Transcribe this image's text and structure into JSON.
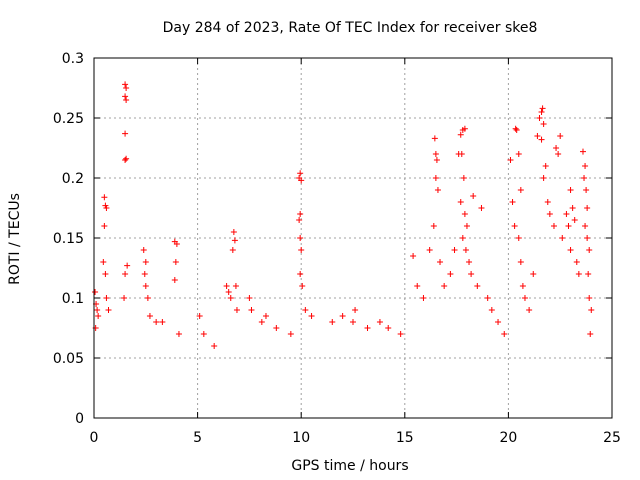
{
  "chart_data": {
    "type": "scatter",
    "title": "Day 284 of 2023, Rate Of TEC Index for receiver ske8",
    "xlabel": "GPS time / hours",
    "ylabel": "ROTI / TECUs",
    "xlim": [
      0,
      25
    ],
    "ylim": [
      0,
      0.3
    ],
    "x_ticks": [
      "0",
      "5",
      "10",
      "15",
      "20",
      "25"
    ],
    "y_ticks": [
      "0",
      "0.05",
      "0.1",
      "0.15",
      "0.2",
      "0.25",
      "0.3"
    ],
    "grid": true,
    "legend": "none",
    "marker": "plus",
    "color": "#ff0000",
    "series": [
      {
        "values": [
          [
            0.05,
            0.105
          ],
          [
            0.1,
            0.095
          ],
          [
            0.15,
            0.09
          ],
          [
            0.2,
            0.085
          ],
          [
            0.08,
            0.075
          ],
          [
            0.5,
            0.184
          ],
          [
            0.55,
            0.177
          ],
          [
            0.6,
            0.175
          ],
          [
            0.5,
            0.16
          ],
          [
            0.45,
            0.13
          ],
          [
            0.55,
            0.12
          ],
          [
            0.6,
            0.1
          ],
          [
            0.7,
            0.09
          ],
          [
            1.5,
            0.278
          ],
          [
            1.55,
            0.275
          ],
          [
            1.5,
            0.268
          ],
          [
            1.55,
            0.265
          ],
          [
            1.5,
            0.237
          ],
          [
            1.55,
            0.216
          ],
          [
            1.5,
            0.215
          ],
          [
            1.6,
            0.127
          ],
          [
            1.5,
            0.12
          ],
          [
            1.45,
            0.1
          ],
          [
            2.4,
            0.14
          ],
          [
            2.5,
            0.13
          ],
          [
            2.45,
            0.12
          ],
          [
            2.5,
            0.11
          ],
          [
            2.6,
            0.1
          ],
          [
            2.7,
            0.085
          ],
          [
            3.0,
            0.08
          ],
          [
            3.3,
            0.08
          ],
          [
            3.9,
            0.147
          ],
          [
            4.0,
            0.145
          ],
          [
            3.95,
            0.13
          ],
          [
            3.9,
            0.115
          ],
          [
            4.1,
            0.07
          ],
          [
            5.1,
            0.085
          ],
          [
            5.3,
            0.07
          ],
          [
            5.8,
            0.06
          ],
          [
            6.4,
            0.11
          ],
          [
            6.5,
            0.105
          ],
          [
            6.6,
            0.1
          ],
          [
            6.75,
            0.155
          ],
          [
            6.8,
            0.148
          ],
          [
            6.7,
            0.14
          ],
          [
            6.85,
            0.11
          ],
          [
            6.9,
            0.09
          ],
          [
            7.5,
            0.1
          ],
          [
            7.6,
            0.09
          ],
          [
            8.3,
            0.085
          ],
          [
            8.1,
            0.08
          ],
          [
            8.8,
            0.075
          ],
          [
            9.5,
            0.07
          ],
          [
            9.9,
            0.2
          ],
          [
            9.95,
            0.204
          ],
          [
            10.0,
            0.198
          ],
          [
            9.95,
            0.17
          ],
          [
            9.9,
            0.165
          ],
          [
            9.95,
            0.15
          ],
          [
            10.0,
            0.14
          ],
          [
            9.95,
            0.12
          ],
          [
            10.05,
            0.11
          ],
          [
            10.2,
            0.09
          ],
          [
            10.5,
            0.085
          ],
          [
            11.5,
            0.08
          ],
          [
            12.0,
            0.085
          ],
          [
            12.5,
            0.08
          ],
          [
            12.6,
            0.09
          ],
          [
            13.2,
            0.075
          ],
          [
            13.8,
            0.08
          ],
          [
            14.2,
            0.075
          ],
          [
            14.8,
            0.07
          ],
          [
            15.4,
            0.135
          ],
          [
            15.6,
            0.11
          ],
          [
            15.9,
            0.1
          ],
          [
            16.2,
            0.14
          ],
          [
            16.4,
            0.16
          ],
          [
            16.5,
            0.22
          ],
          [
            16.45,
            0.233
          ],
          [
            16.55,
            0.215
          ],
          [
            16.5,
            0.2
          ],
          [
            16.6,
            0.19
          ],
          [
            16.7,
            0.13
          ],
          [
            16.9,
            0.11
          ],
          [
            17.2,
            0.12
          ],
          [
            17.4,
            0.14
          ],
          [
            17.6,
            0.22
          ],
          [
            17.7,
            0.236
          ],
          [
            17.8,
            0.24
          ],
          [
            17.9,
            0.241
          ],
          [
            17.75,
            0.22
          ],
          [
            17.85,
            0.2
          ],
          [
            17.7,
            0.18
          ],
          [
            17.9,
            0.17
          ],
          [
            18.0,
            0.16
          ],
          [
            17.8,
            0.15
          ],
          [
            17.95,
            0.14
          ],
          [
            18.1,
            0.13
          ],
          [
            18.2,
            0.12
          ],
          [
            18.3,
            0.185
          ],
          [
            18.5,
            0.11
          ],
          [
            18.7,
            0.175
          ],
          [
            19.0,
            0.1
          ],
          [
            19.2,
            0.09
          ],
          [
            19.5,
            0.08
          ],
          [
            19.8,
            0.07
          ],
          [
            20.1,
            0.215
          ],
          [
            20.2,
            0.18
          ],
          [
            20.3,
            0.16
          ],
          [
            20.35,
            0.241
          ],
          [
            20.4,
            0.24
          ],
          [
            20.5,
            0.22
          ],
          [
            20.6,
            0.19
          ],
          [
            20.5,
            0.15
          ],
          [
            20.6,
            0.13
          ],
          [
            20.7,
            0.11
          ],
          [
            20.8,
            0.1
          ],
          [
            21.0,
            0.09
          ],
          [
            21.2,
            0.12
          ],
          [
            21.4,
            0.235
          ],
          [
            21.5,
            0.25
          ],
          [
            21.6,
            0.255
          ],
          [
            21.65,
            0.258
          ],
          [
            21.7,
            0.245
          ],
          [
            21.6,
            0.232
          ],
          [
            21.8,
            0.21
          ],
          [
            21.7,
            0.2
          ],
          [
            21.9,
            0.18
          ],
          [
            22.0,
            0.17
          ],
          [
            22.2,
            0.16
          ],
          [
            22.3,
            0.225
          ],
          [
            22.5,
            0.235
          ],
          [
            22.4,
            0.22
          ],
          [
            22.6,
            0.15
          ],
          [
            22.8,
            0.17
          ],
          [
            22.9,
            0.16
          ],
          [
            23.0,
            0.19
          ],
          [
            23.1,
            0.175
          ],
          [
            23.2,
            0.165
          ],
          [
            23.0,
            0.14
          ],
          [
            23.3,
            0.13
          ],
          [
            23.4,
            0.12
          ],
          [
            23.6,
            0.222
          ],
          [
            23.7,
            0.21
          ],
          [
            23.65,
            0.2
          ],
          [
            23.75,
            0.19
          ],
          [
            23.8,
            0.175
          ],
          [
            23.7,
            0.16
          ],
          [
            23.8,
            0.15
          ],
          [
            23.9,
            0.14
          ],
          [
            23.85,
            0.12
          ],
          [
            23.9,
            0.1
          ],
          [
            24.0,
            0.09
          ],
          [
            23.95,
            0.07
          ]
        ]
      }
    ]
  }
}
